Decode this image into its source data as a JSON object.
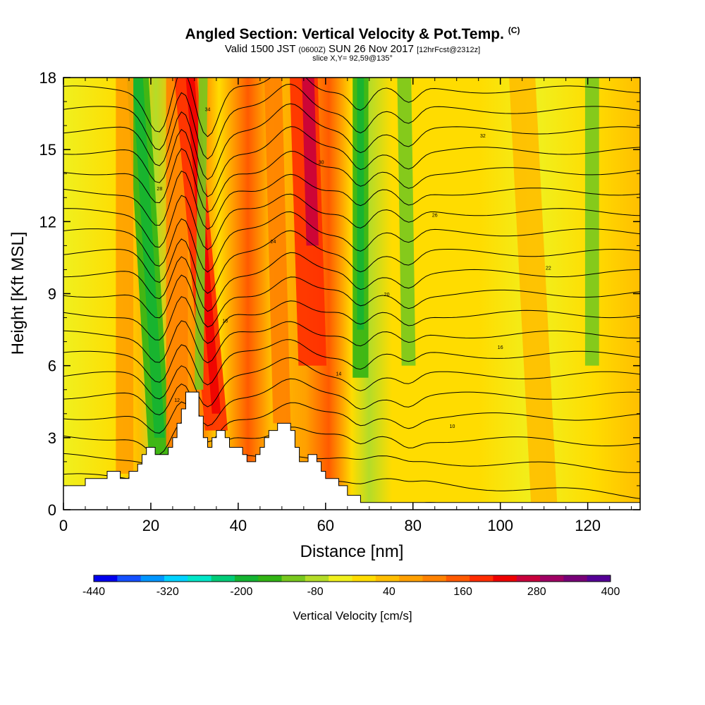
{
  "chart_data": {
    "type": "heatmap",
    "title": "Angled Section: Vertical Velocity & Pot.Temp.",
    "title_unit": "(C)",
    "subtitle_parts": [
      "Valid 1500 JST ",
      "(0600Z)",
      " SUN 26 Nov 2017 ",
      "[12hrFcst@2312z]"
    ],
    "slice_label": "slice X,Y= 92,59@135°",
    "xlabel": "Distance [nm]",
    "ylabel": "Height [Kft MSL]",
    "xlim": [
      0,
      132
    ],
    "ylim": [
      0,
      18
    ],
    "x_ticks": [
      0,
      20,
      40,
      60,
      80,
      100,
      120
    ],
    "y_ticks": [
      0,
      3,
      6,
      9,
      12,
      15,
      18
    ],
    "colorbar": {
      "title": "Vertical Velocity [cm/s]",
      "tick_labels": [
        "-440",
        "-320",
        "-200",
        "-80",
        "40",
        "160",
        "280",
        "400"
      ],
      "colors": [
        "#0000ee",
        "#1450ff",
        "#0096ff",
        "#00d2ff",
        "#00e6c8",
        "#00cc78",
        "#14b432",
        "#32b414",
        "#78c81e",
        "#b4dc28",
        "#f0f01e",
        "#ffdc00",
        "#ffbe00",
        "#ffa000",
        "#ff8200",
        "#ff5a00",
        "#ff2d00",
        "#ee0000",
        "#c8003c",
        "#a00064",
        "#780078",
        "#550096"
      ]
    },
    "terrain": [
      [
        0,
        1
      ],
      [
        5,
        1
      ],
      [
        5,
        1.3
      ],
      [
        10,
        1.3
      ],
      [
        10,
        1.6
      ],
      [
        13,
        1.6
      ],
      [
        13,
        1.3
      ],
      [
        15,
        1.3
      ],
      [
        15,
        1.6
      ],
      [
        17,
        1.6
      ],
      [
        17,
        1.9
      ],
      [
        18,
        1.9
      ],
      [
        18,
        2.3
      ],
      [
        19,
        2.3
      ],
      [
        19,
        2.6
      ],
      [
        21,
        2.6
      ],
      [
        21,
        2.3
      ],
      [
        24,
        2.3
      ],
      [
        24,
        2.6
      ],
      [
        25,
        2.6
      ],
      [
        25,
        3.0
      ],
      [
        26,
        3.0
      ],
      [
        26,
        3.6
      ],
      [
        27,
        3.6
      ],
      [
        27,
        4.2
      ],
      [
        28,
        4.2
      ],
      [
        28,
        4.9
      ],
      [
        31,
        4.9
      ],
      [
        31,
        3.9
      ],
      [
        32,
        3.9
      ],
      [
        32,
        3.0
      ],
      [
        33,
        3.0
      ],
      [
        33,
        2.6
      ],
      [
        34,
        2.6
      ],
      [
        34,
        3.0
      ],
      [
        35,
        3.0
      ],
      [
        35,
        3.3
      ],
      [
        37,
        3.3
      ],
      [
        37,
        3.0
      ],
      [
        38,
        3.0
      ],
      [
        38,
        2.6
      ],
      [
        41,
        2.6
      ],
      [
        41,
        2.3
      ],
      [
        42,
        2.3
      ],
      [
        42,
        2.0
      ],
      [
        44,
        2.0
      ],
      [
        44,
        2.3
      ],
      [
        45,
        2.3
      ],
      [
        45,
        2.6
      ],
      [
        46,
        2.6
      ],
      [
        46,
        3.0
      ],
      [
        47,
        3.0
      ],
      [
        47,
        3.3
      ],
      [
        49,
        3.3
      ],
      [
        49,
        3.6
      ],
      [
        52,
        3.6
      ],
      [
        52,
        3.3
      ],
      [
        53,
        3.3
      ],
      [
        53,
        2.6
      ],
      [
        54,
        2.6
      ],
      [
        54,
        2.0
      ],
      [
        56,
        2.0
      ],
      [
        56,
        2.3
      ],
      [
        58,
        2.3
      ],
      [
        58,
        2.0
      ],
      [
        59,
        2.0
      ],
      [
        59,
        1.6
      ],
      [
        60,
        1.6
      ],
      [
        60,
        1.3
      ],
      [
        63,
        1.3
      ],
      [
        63,
        1.0
      ],
      [
        65,
        1.0
      ],
      [
        65,
        0.6
      ],
      [
        68,
        0.6
      ],
      [
        68,
        0.3
      ],
      [
        132,
        0.3
      ]
    ],
    "contour_labels": [
      "6",
      "8",
      "10",
      "12",
      "14",
      "16",
      "18",
      "20",
      "22",
      "24",
      "26",
      "28",
      "30",
      "32",
      "34"
    ]
  }
}
